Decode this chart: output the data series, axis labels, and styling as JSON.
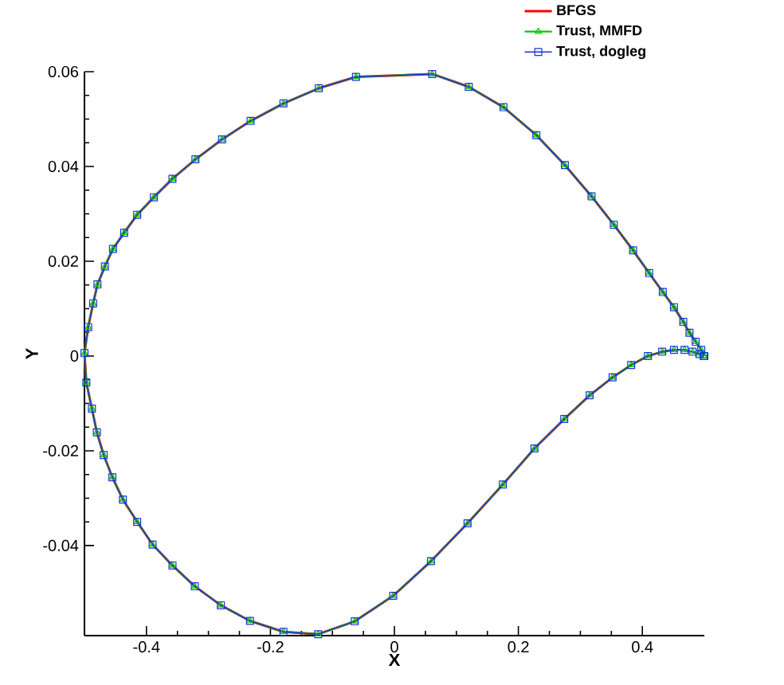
{
  "chart_data": {
    "type": "line",
    "xlabel": "X",
    "ylabel": "Y",
    "xlim": [
      -0.5,
      0.5
    ],
    "ylim": [
      -0.059,
      0.06
    ],
    "xticks": [
      -0.4,
      -0.2,
      0,
      0.2,
      0.4
    ],
    "yticks": [
      -0.04,
      -0.02,
      0,
      0.02,
      0.04,
      0.06
    ],
    "grid": false,
    "legend": "top right",
    "line_style": "solid",
    "x": [
      0.5,
      0.495,
      0.486,
      0.476,
      0.466,
      0.451,
      0.433,
      0.411,
      0.385,
      0.354,
      0.318,
      0.275,
      0.229,
      0.176,
      0.12,
      0.061,
      -0.062,
      -0.122,
      -0.179,
      -0.232,
      -0.278,
      -0.321,
      -0.358,
      -0.388,
      -0.415,
      -0.436,
      -0.454,
      -0.467,
      -0.479,
      -0.486,
      -0.494,
      -0.5,
      -0.497,
      -0.488,
      -0.48,
      -0.469,
      -0.455,
      -0.438,
      -0.415,
      -0.39,
      -0.358,
      -0.322,
      -0.28,
      -0.233,
      -0.179,
      -0.123,
      -0.064,
      -0.002,
      0.059,
      0.118,
      0.175,
      0.226,
      0.274,
      0.315,
      0.352,
      0.382,
      0.409,
      0.432,
      0.451,
      0.468,
      0.481,
      0.492,
      0.499
    ],
    "series": [
      {
        "name": "BFGS",
        "color": "#ff0000",
        "marker": "none",
        "values": [
          null,
          null,
          0.003,
          0.0049,
          0.0072,
          0.0103,
          0.0135,
          0.0175,
          0.0223,
          0.0277,
          0.0337,
          0.0403,
          0.0466,
          0.0525,
          0.0568,
          0.0595,
          0.0589,
          0.0565,
          0.0533,
          0.0496,
          0.0457,
          0.0415,
          0.0374,
          0.0335,
          0.0298,
          0.026,
          0.0226,
          0.0189,
          0.0151,
          0.0111,
          0.0061,
          0.0006,
          -0.0056,
          -0.0111,
          -0.0161,
          -0.0209,
          -0.0256,
          -0.0303,
          -0.035,
          -0.0398,
          -0.0442,
          -0.0486,
          -0.0526,
          -0.0559,
          -0.0582,
          -0.0587,
          -0.056,
          -0.0506,
          -0.0433,
          -0.0353,
          -0.0271,
          -0.0195,
          -0.0133,
          -0.0083,
          -0.0045,
          -0.0019,
          0.0,
          0.0009,
          0.0013,
          null,
          null,
          null,
          null
        ]
      },
      {
        "name": "Trust, MMFD",
        "color": "#00cc00",
        "marker": "triangle",
        "values": [
          0,
          0.0013,
          0.003,
          0.0049,
          0.0072,
          0.0103,
          0.0135,
          0.0175,
          0.0223,
          0.0277,
          0.0337,
          0.0403,
          0.0466,
          0.0525,
          0.0568,
          0.0595,
          0.0589,
          0.0565,
          0.0533,
          0.0496,
          0.0457,
          0.0415,
          0.0374,
          0.0335,
          0.0298,
          0.026,
          0.0226,
          0.0189,
          0.0151,
          0.0111,
          0.0061,
          0.0006,
          -0.0056,
          -0.0111,
          -0.0161,
          -0.0209,
          -0.0256,
          -0.0303,
          -0.035,
          -0.0398,
          -0.0442,
          -0.0486,
          -0.0526,
          -0.0559,
          -0.0582,
          -0.0587,
          -0.056,
          -0.0506,
          -0.0433,
          -0.0353,
          -0.0271,
          -0.0195,
          -0.0133,
          -0.0083,
          -0.0045,
          -0.0019,
          0.0,
          0.0009,
          0.0013,
          0.0013,
          0.0009,
          0.0004,
          0
        ]
      },
      {
        "name": "Trust, dogleg",
        "color": "#1a33dd",
        "marker": "square",
        "values": [
          0,
          0.0013,
          0.003,
          0.0049,
          0.0072,
          0.0103,
          0.0135,
          0.0175,
          0.0223,
          0.0277,
          0.0337,
          0.0403,
          0.0466,
          0.0525,
          0.0568,
          0.0595,
          0.0589,
          0.0565,
          0.0533,
          0.0496,
          0.0457,
          0.0415,
          0.0374,
          0.0335,
          0.0298,
          0.026,
          0.0226,
          0.0189,
          0.0151,
          0.0111,
          0.0061,
          0.0006,
          -0.0056,
          -0.0111,
          -0.0161,
          -0.0209,
          -0.0256,
          -0.0303,
          -0.035,
          -0.0398,
          -0.0442,
          -0.0486,
          -0.0526,
          -0.0559,
          -0.0582,
          -0.0587,
          -0.056,
          -0.0506,
          -0.0433,
          -0.0353,
          -0.0271,
          -0.0195,
          -0.0133,
          -0.0083,
          -0.0045,
          -0.0019,
          0.0,
          0.0009,
          0.0013,
          0.0013,
          0.0009,
          0.0004,
          0
        ]
      }
    ]
  }
}
